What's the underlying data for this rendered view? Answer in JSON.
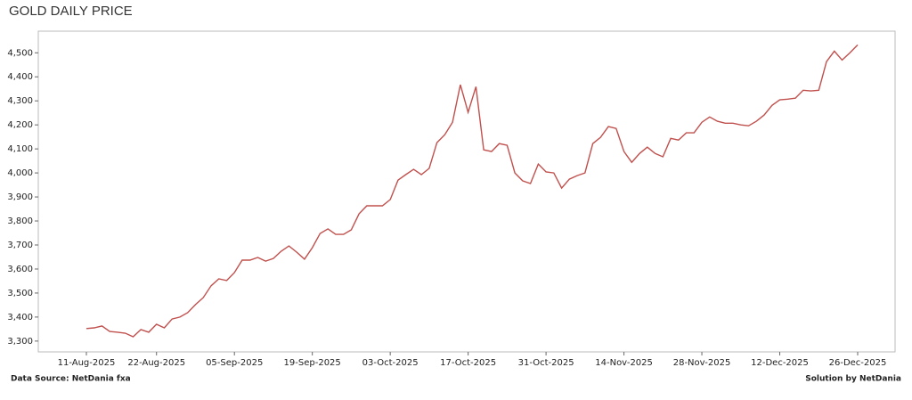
{
  "chart_data": {
    "type": "line",
    "title": "GOLD DAILY PRICE",
    "source": "Data Source: NetDania fxa",
    "credit": "Solution by NetDania",
    "categories": [
      "11-Aug-2025",
      null,
      null,
      null,
      null,
      null,
      null,
      null,
      null,
      "22-Aug-2025",
      null,
      null,
      null,
      null,
      null,
      null,
      null,
      null,
      null,
      "05-Sep-2025",
      null,
      null,
      null,
      null,
      null,
      null,
      null,
      null,
      null,
      "19-Sep-2025",
      null,
      null,
      null,
      null,
      null,
      null,
      null,
      null,
      null,
      "03-Oct-2025",
      null,
      null,
      null,
      null,
      null,
      null,
      null,
      null,
      null,
      "17-Oct-2025",
      null,
      null,
      null,
      null,
      null,
      null,
      null,
      null,
      null,
      "31-Oct-2025",
      null,
      null,
      null,
      null,
      null,
      null,
      null,
      null,
      null,
      "14-Nov-2025",
      null,
      null,
      null,
      null,
      null,
      null,
      null,
      null,
      null,
      "28-Nov-2025",
      null,
      null,
      null,
      null,
      null,
      null,
      null,
      null,
      null,
      "12-Dec-2025",
      null,
      null,
      null,
      null,
      null,
      null,
      null,
      null,
      null,
      "26-Dec-2025"
    ],
    "values": [
      3352,
      3355,
      3363,
      3340,
      3337,
      3333,
      3318,
      3348,
      3337,
      3370,
      3355,
      3392,
      3400,
      3418,
      3452,
      3481,
      3530,
      3559,
      3552,
      3585,
      3637,
      3637,
      3648,
      3633,
      3644,
      3674,
      3696,
      3670,
      3641,
      3689,
      3748,
      3767,
      3744,
      3744,
      3763,
      3830,
      3863,
      3863,
      3863,
      3889,
      3970,
      3993,
      4015,
      3993,
      4019,
      4126,
      4159,
      4211,
      4367,
      4252,
      4359,
      4096,
      4089,
      4122,
      4115,
      4000,
      3967,
      3956,
      4037,
      4004,
      4000,
      3937,
      3974,
      3989,
      4000,
      4122,
      4148,
      4193,
      4185,
      4089,
      4044,
      4081,
      4107,
      4081,
      4067,
      4144,
      4137,
      4167,
      4167,
      4211,
      4233,
      4215,
      4207,
      4207,
      4200,
      4196,
      4215,
      4241,
      4281,
      4304,
      4307,
      4311,
      4344,
      4341,
      4344,
      4463,
      4507,
      4470,
      4500,
      4533
    ],
    "color": "#c0504d",
    "ylim": [
      3255,
      4590
    ],
    "yticks": [
      {
        "value": 3300,
        "label": "3,300"
      },
      {
        "value": 3400,
        "label": "3,400"
      },
      {
        "value": 3500,
        "label": "3,500"
      },
      {
        "value": 3600,
        "label": "3,600"
      },
      {
        "value": 3700,
        "label": "3,700"
      },
      {
        "value": 3800,
        "label": "3,800"
      },
      {
        "value": 3900,
        "label": "3,900"
      },
      {
        "value": 4000,
        "label": "4,000"
      },
      {
        "value": 4100,
        "label": "4,100"
      },
      {
        "value": 4200,
        "label": "4,200"
      },
      {
        "value": 4300,
        "label": "4,300"
      },
      {
        "value": 4400,
        "label": "4,400"
      },
      {
        "value": 4500,
        "label": "4,500"
      }
    ]
  }
}
